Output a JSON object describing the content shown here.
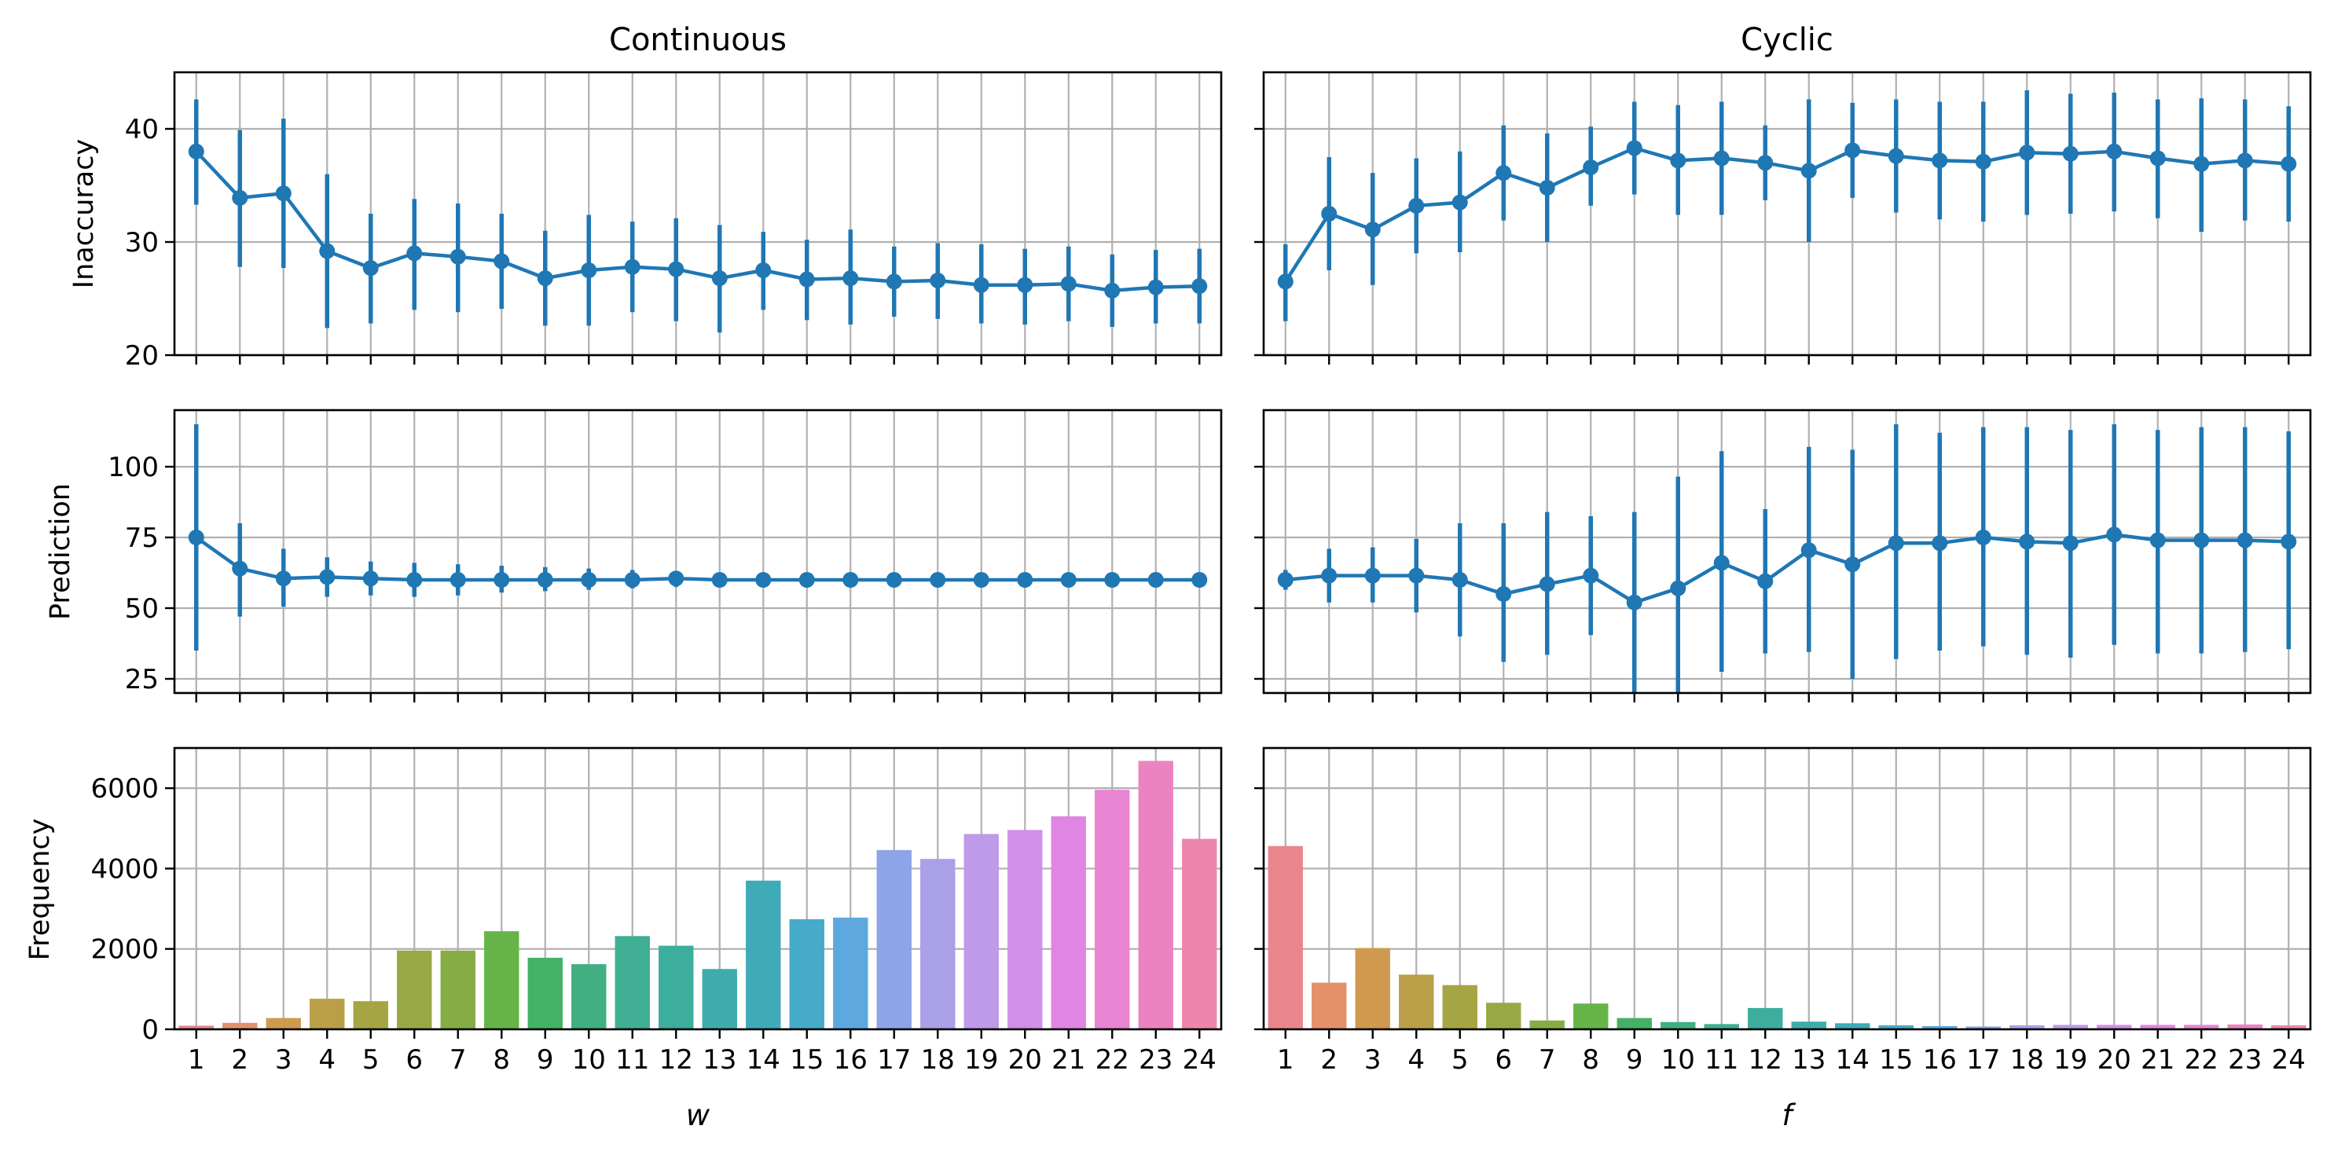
{
  "colors": {
    "line": "#1f77b4",
    "grid": "#b0b0b0",
    "axes": "#000000"
  },
  "bar_palette": [
    "#e9868c",
    "#e3906b",
    "#d09950",
    "#b99f48",
    "#a6a544",
    "#98a844",
    "#86ad45",
    "#66b447",
    "#44b167",
    "#41af82",
    "#3fae93",
    "#3dad9e",
    "#3eacab",
    "#3fabb8",
    "#45abc8",
    "#5ea8e0",
    "#8da4e8",
    "#aaa0e8",
    "#bf9ae8",
    "#d28fe8",
    "#e086e2",
    "#e884d1",
    "#ec83c1",
    "#ed86ad"
  ],
  "chart_data": [
    {
      "id": "continuous-inaccuracy",
      "type": "line",
      "title": "Continuous",
      "ylabel": "Inaccuracy",
      "xlabel": "",
      "x": [
        "1",
        "2",
        "3",
        "4",
        "5",
        "6",
        "7",
        "8",
        "9",
        "10",
        "11",
        "12",
        "13",
        "14",
        "15",
        "16",
        "17",
        "18",
        "19",
        "20",
        "21",
        "22",
        "23",
        "24"
      ],
      "y": [
        38.0,
        33.9,
        34.3,
        29.2,
        27.7,
        29.0,
        28.7,
        28.3,
        26.8,
        27.5,
        27.8,
        27.6,
        26.8,
        27.5,
        26.7,
        26.8,
        26.5,
        26.6,
        26.2,
        26.2,
        26.3,
        25.7,
        26.0,
        26.1
      ],
      "err_low": [
        33.3,
        27.8,
        27.7,
        22.4,
        22.8,
        24.0,
        23.8,
        24.1,
        22.6,
        22.6,
        23.8,
        23.0,
        22.0,
        24.0,
        23.1,
        22.7,
        23.4,
        23.2,
        22.8,
        22.7,
        23.0,
        22.5,
        22.8,
        22.8
      ],
      "err_high": [
        42.6,
        39.9,
        40.9,
        36.0,
        32.5,
        33.8,
        33.4,
        32.5,
        31.0,
        32.4,
        31.8,
        32.1,
        31.5,
        30.9,
        30.2,
        31.1,
        29.6,
        29.9,
        29.8,
        29.4,
        29.6,
        28.9,
        29.3,
        29.4
      ],
      "ylim": [
        20,
        45
      ],
      "yticks": [
        "20",
        "30",
        "40"
      ]
    },
    {
      "id": "cyclic-inaccuracy",
      "type": "line",
      "title": "Cyclic",
      "ylabel": "",
      "xlabel": "",
      "x": [
        "1",
        "2",
        "3",
        "4",
        "5",
        "6",
        "7",
        "8",
        "9",
        "10",
        "11",
        "12",
        "13",
        "14",
        "15",
        "16",
        "17",
        "18",
        "19",
        "20",
        "21",
        "22",
        "23",
        "24"
      ],
      "y": [
        26.5,
        32.5,
        31.1,
        33.2,
        33.5,
        36.1,
        34.8,
        36.6,
        38.3,
        37.2,
        37.4,
        37.0,
        36.3,
        38.1,
        37.6,
        37.2,
        37.1,
        37.9,
        37.8,
        38.0,
        37.4,
        36.9,
        37.2,
        36.9
      ],
      "err_low": [
        23.0,
        27.5,
        26.2,
        29.0,
        29.1,
        31.9,
        30.0,
        33.2,
        34.2,
        32.4,
        32.4,
        33.7,
        30.0,
        33.9,
        32.6,
        32.0,
        31.8,
        32.4,
        32.5,
        32.7,
        32.1,
        30.9,
        31.9,
        31.8
      ],
      "err_high": [
        29.8,
        37.5,
        36.1,
        37.4,
        38.0,
        40.3,
        39.6,
        40.2,
        42.4,
        42.1,
        42.4,
        40.3,
        42.6,
        42.3,
        42.6,
        42.4,
        42.4,
        43.4,
        43.1,
        43.2,
        42.6,
        42.7,
        42.6,
        42.0
      ],
      "ylim": [
        20,
        45
      ],
      "yticks": [
        "20",
        "30",
        "40"
      ]
    },
    {
      "id": "continuous-prediction",
      "type": "line",
      "title": "",
      "ylabel": "Prediction",
      "xlabel": "",
      "x": [
        "1",
        "2",
        "3",
        "4",
        "5",
        "6",
        "7",
        "8",
        "9",
        "10",
        "11",
        "12",
        "13",
        "14",
        "15",
        "16",
        "17",
        "18",
        "19",
        "20",
        "21",
        "22",
        "23",
        "24"
      ],
      "y": [
        75,
        64,
        60.5,
        61,
        60.5,
        60,
        60,
        60,
        60,
        60,
        60,
        60.5,
        60,
        60,
        60,
        60,
        60,
        60,
        60,
        60,
        60,
        60,
        60,
        60
      ],
      "err_low": [
        35,
        47,
        50.5,
        54,
        54.5,
        54,
        54.5,
        55.5,
        56,
        56.5,
        57,
        57.5,
        57.5,
        58,
        58,
        58,
        58.5,
        58.5,
        58.5,
        58.5,
        58.5,
        58.5,
        58.5,
        58.5
      ],
      "err_high": [
        115,
        80,
        71,
        68,
        66.5,
        66,
        65.5,
        65,
        64.5,
        64,
        63.5,
        63,
        62.5,
        62,
        62,
        62,
        61.5,
        61.5,
        61.5,
        61.5,
        61.5,
        61.5,
        61.5,
        61.5
      ],
      "ylim": [
        20,
        120
      ],
      "yticks": [
        "25",
        "50",
        "75",
        "100"
      ]
    },
    {
      "id": "cyclic-prediction",
      "type": "line",
      "title": "",
      "ylabel": "",
      "xlabel": "",
      "x": [
        "1",
        "2",
        "3",
        "4",
        "5",
        "6",
        "7",
        "8",
        "9",
        "10",
        "11",
        "12",
        "13",
        "14",
        "15",
        "16",
        "17",
        "18",
        "19",
        "20",
        "21",
        "22",
        "23",
        "24"
      ],
      "y": [
        60,
        61.5,
        61.5,
        61.5,
        60,
        55,
        58.5,
        61.5,
        52,
        57,
        66,
        59.5,
        70.5,
        65.5,
        73,
        73,
        75,
        73.5,
        73,
        76,
        74,
        74,
        74,
        73.5
      ],
      "err_low": [
        56.5,
        52,
        52,
        48.5,
        40,
        31,
        33.5,
        40.5,
        19,
        19,
        27.5,
        34,
        34.5,
        25,
        32,
        35,
        36.5,
        33.5,
        32.5,
        37,
        34,
        34,
        34.5,
        35.5
      ],
      "err_high": [
        63.5,
        71,
        71.5,
        74.5,
        80,
        80,
        84,
        82.5,
        84,
        96.5,
        105.5,
        85,
        107,
        106,
        115,
        112,
        114,
        114,
        113,
        115,
        113,
        114,
        114,
        112.5
      ],
      "ylim": [
        20,
        120
      ],
      "yticks": [
        "25",
        "50",
        "75",
        "100"
      ]
    },
    {
      "id": "continuous-frequency",
      "type": "bar",
      "title": "",
      "ylabel": "Frequency",
      "xlabel": "w",
      "categories": [
        "1",
        "2",
        "3",
        "4",
        "5",
        "6",
        "7",
        "8",
        "9",
        "10",
        "11",
        "12",
        "13",
        "14",
        "15",
        "16",
        "17",
        "18",
        "19",
        "20",
        "21",
        "22",
        "23",
        "24"
      ],
      "values": [
        90,
        160,
        280,
        760,
        700,
        1960,
        1960,
        2440,
        1780,
        1620,
        2320,
        2080,
        1500,
        3700,
        2740,
        2780,
        4460,
        4240,
        4860,
        4960,
        5300,
        5960,
        6680,
        4740
      ],
      "ylim": [
        0,
        7000
      ],
      "yticks": [
        "0",
        "2000",
        "4000",
        "6000"
      ]
    },
    {
      "id": "cyclic-frequency",
      "type": "bar",
      "title": "",
      "ylabel": "",
      "xlabel": "f",
      "categories": [
        "1",
        "2",
        "3",
        "4",
        "5",
        "6",
        "7",
        "8",
        "9",
        "10",
        "11",
        "12",
        "13",
        "14",
        "15",
        "16",
        "17",
        "18",
        "19",
        "20",
        "21",
        "22",
        "23",
        "24"
      ],
      "values": [
        4560,
        1160,
        2020,
        1360,
        1100,
        660,
        220,
        640,
        280,
        180,
        130,
        530,
        190,
        150,
        100,
        80,
        70,
        100,
        110,
        110,
        110,
        110,
        120,
        100
      ],
      "ylim": [
        0,
        7000
      ],
      "yticks": [
        "0",
        "2000",
        "4000",
        "6000"
      ]
    }
  ]
}
